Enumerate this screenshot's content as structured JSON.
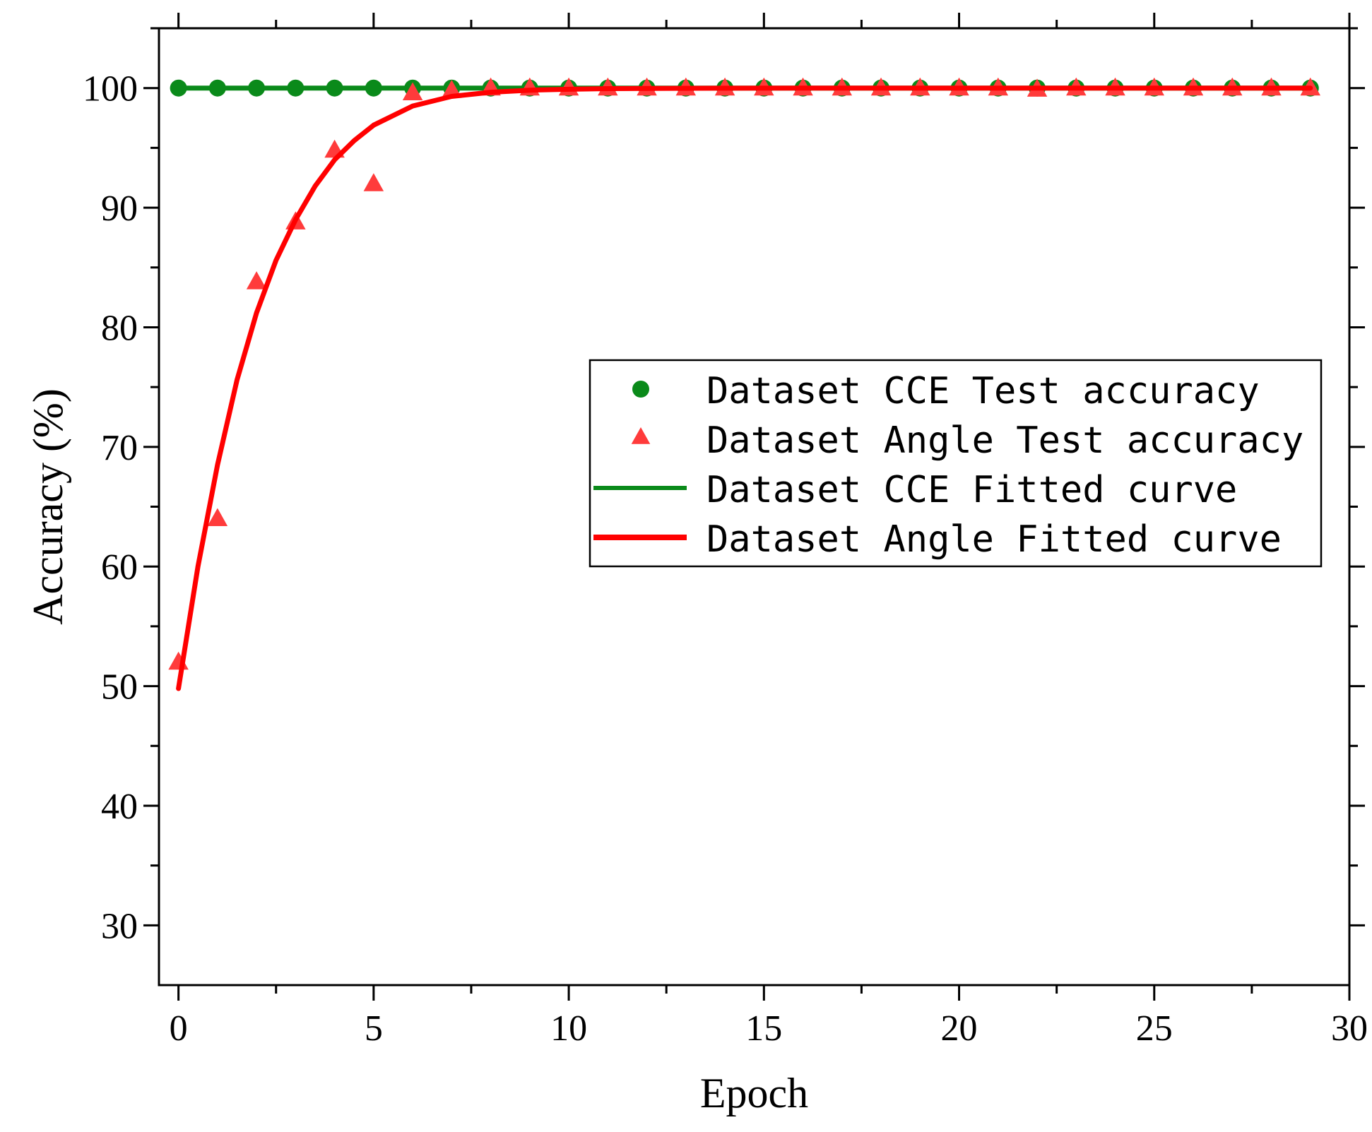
{
  "chart_data": {
    "type": "scatter",
    "title": "",
    "xlabel": "Epoch",
    "ylabel": "Accuracy (%)",
    "xlim": [
      -0.5,
      30
    ],
    "ylim": [
      25,
      105
    ],
    "xticks": [
      0,
      5,
      10,
      15,
      20,
      25,
      30
    ],
    "yticks": [
      30,
      40,
      50,
      60,
      70,
      80,
      90,
      100
    ],
    "xtick_labels": [
      "0",
      "5",
      "10",
      "15",
      "20",
      "25",
      "30"
    ],
    "ytick_labels": [
      "30",
      "40",
      "50",
      "60",
      "70",
      "80",
      "90",
      "100"
    ],
    "grid": false,
    "legend_position": "center-right",
    "series": [
      {
        "name": "Dataset CCE Test accuracy",
        "kind": "scatter",
        "marker": "circle",
        "color": "#0a8a1a",
        "x": [
          0,
          1,
          2,
          3,
          4,
          5,
          6,
          7,
          8,
          9,
          10,
          11,
          12,
          13,
          14,
          15,
          16,
          17,
          18,
          19,
          20,
          21,
          22,
          23,
          24,
          25,
          26,
          27,
          28,
          29
        ],
        "y": [
          100,
          100,
          100,
          100,
          100,
          100,
          100,
          100,
          100,
          100,
          100,
          100,
          100,
          100,
          100,
          100,
          100,
          100,
          100,
          100,
          100,
          100,
          100,
          100,
          100,
          100,
          100,
          100,
          100,
          100
        ]
      },
      {
        "name": "Dataset Angle Test accuracy",
        "kind": "scatter",
        "marker": "triangle",
        "color": "#ff3b3b",
        "x": [
          0,
          1,
          2,
          3,
          4,
          5,
          6,
          7,
          8,
          9,
          10,
          11,
          12,
          13,
          14,
          15,
          16,
          17,
          18,
          19,
          20,
          21,
          22,
          23,
          24,
          25,
          26,
          27,
          28,
          29
        ],
        "y": [
          52,
          64,
          83.8,
          88.8,
          94.8,
          92,
          99.6,
          99.8,
          100,
          100,
          100,
          100,
          100,
          100,
          100,
          100,
          100,
          100,
          100,
          100,
          100,
          100,
          99.9,
          100,
          100,
          100,
          100,
          100,
          100,
          100
        ]
      },
      {
        "name": "Dataset CCE Fitted curve",
        "kind": "line",
        "color": "#0a8a1a",
        "x": [
          0,
          29
        ],
        "y": [
          100,
          100
        ]
      },
      {
        "name": "Dataset Angle Fitted curve",
        "kind": "line",
        "color": "#ff0000",
        "x": [
          0,
          0.5,
          1,
          1.5,
          2,
          2.5,
          3,
          3.5,
          4,
          4.5,
          5,
          6,
          7,
          8,
          9,
          10,
          11,
          12,
          14,
          16,
          18,
          20,
          22,
          24,
          26,
          29
        ],
        "y": [
          49.8,
          60,
          68.5,
          75.6,
          81.2,
          85.6,
          89,
          91.8,
          94,
          95.6,
          96.9,
          98.5,
          99.3,
          99.65,
          99.82,
          99.9,
          99.95,
          99.97,
          99.99,
          100,
          100,
          100,
          100,
          100,
          100,
          100
        ]
      }
    ]
  }
}
